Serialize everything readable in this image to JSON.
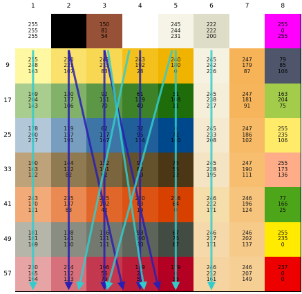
{
  "columns": [
    "1",
    "2",
    "3",
    "4",
    "5",
    "6",
    "7",
    "8"
  ],
  "rows": [
    "",
    "9",
    "17",
    "25",
    "33",
    "41",
    "49",
    "57"
  ],
  "cells": [
    [
      {
        "rgb": [
          "255",
          "255",
          "255"
        ],
        "color": "#ffffff"
      },
      {
        "rgb": [
          "0",
          "0",
          "0"
        ],
        "color": "#000000"
      },
      {
        "rgb": [
          "150",
          "81",
          "54"
        ],
        "color": "#965136"
      },
      {
        "rgb": [
          "",
          "",
          ""
        ],
        "color": "#ffffff"
      },
      {
        "rgb": [
          "245",
          "244",
          "231"
        ],
        "color": "#f5f4e7"
      },
      {
        "rgb": [
          "222",
          "222",
          "200"
        ],
        "color": "#dedec8"
      },
      {
        "rgb": [
          "",
          "",
          ""
        ],
        "color": "#ffffff"
      },
      {
        "rgb": [
          "255",
          "0",
          "255"
        ],
        "color": "#ff00ff"
      }
    ],
    [
      {
        "rgb": [
          "255",
          "248",
          "163"
        ],
        "color": "#fff8a3"
      },
      {
        "rgb": [
          "250",
          "225",
          "107"
        ],
        "color": "#fae16b"
      },
      {
        "rgb": [
          "248",
          "215",
          "83"
        ],
        "color": "#f8d753"
      },
      {
        "rgb": [
          "243",
          "192",
          "28"
        ],
        "color": "#f3c01c"
      },
      {
        "rgb": [
          "240",
          "180",
          "0"
        ],
        "color": "#f0b400"
      },
      {
        "rgb": [
          "245",
          "242",
          "226"
        ],
        "color": "#f5f2e2"
      },
      {
        "rgb": [
          "247",
          "179",
          "87"
        ],
        "color": "#f7b357"
      },
      {
        "rgb": [
          "79",
          "85",
          "106"
        ],
        "color": "#4f556a"
      }
    ],
    [
      {
        "rgb": [
          "169",
          "204",
          "143"
        ],
        "color": "#a9cc8f"
      },
      {
        "rgb": [
          "130",
          "177",
          "106"
        ],
        "color": "#82b16a"
      },
      {
        "rgb": [
          "92",
          "151",
          "70"
        ],
        "color": "#5c9746"
      },
      {
        "rgb": [
          "61",
          "129",
          "40"
        ],
        "color": "#3d8128"
      },
      {
        "rgb": [
          "31",
          "108",
          "11"
        ],
        "color": "#1f6c0b"
      },
      {
        "rgb": [
          "245",
          "238",
          "217"
        ],
        "color": "#f5eed9"
      },
      {
        "rgb": [
          "247",
          "181",
          "91"
        ],
        "color": "#f7b55b"
      },
      {
        "rgb": [
          "163",
          "204",
          "75"
        ],
        "color": "#a3cc4b"
      }
    ],
    [
      {
        "rgb": [
          "178",
          "200",
          "217"
        ],
        "color": "#b2c8d9"
      },
      {
        "rgb": [
          "119",
          "157",
          "191"
        ],
        "color": "#779dbf"
      },
      {
        "rgb": [
          "62",
          "117",
          "167"
        ],
        "color": "#3e75a7"
      },
      {
        "rgb": [
          "32",
          "95",
          "154"
        ],
        "color": "#205f9a"
      },
      {
        "rgb": [
          "0",
          "72",
          "140"
        ],
        "color": "#00488c"
      },
      {
        "rgb": [
          "245",
          "233",
          "208"
        ],
        "color": "#f5e9d0"
      },
      {
        "rgb": [
          "247",
          "186",
          "102"
        ],
        "color": "#f7ba66"
      },
      {
        "rgb": [
          "255",
          "235",
          "106"
        ],
        "color": "#ffeb6a"
      }
    ],
    [
      {
        "rgb": [
          "190",
          "163",
          "122"
        ],
        "color": "#bea37a"
      },
      {
        "rgb": [
          "144",
          "122",
          "82"
        ],
        "color": "#907a52"
      },
      {
        "rgb": [
          "122",
          "101",
          "62"
        ],
        "color": "#7a653e"
      },
      {
        "rgb": [
          "99",
          "82",
          "43"
        ],
        "color": "#63522b"
      },
      {
        "rgb": [
          "75",
          "55",
          "22"
        ],
        "color": "#4b3716"
      },
      {
        "rgb": [
          "245",
          "228",
          "195"
        ],
        "color": "#f5e4c3"
      },
      {
        "rgb": [
          "247",
          "190",
          "111"
        ],
        "color": "#f7be6f"
      },
      {
        "rgb": [
          "255",
          "173",
          "136"
        ],
        "color": "#ffad88"
      }
    ],
    [
      {
        "rgb": [
          "243",
          "170",
          "121"
        ],
        "color": "#f3aa79"
      },
      {
        "rgb": [
          "235",
          "137",
          "83"
        ],
        "color": "#eb8953"
      },
      {
        "rgb": [
          "225",
          "102",
          "42"
        ],
        "color": "#e1662a"
      },
      {
        "rgb": [
          "220",
          "83",
          "19"
        ],
        "color": "#dc5313"
      },
      {
        "rgb": [
          "216",
          "64",
          "0"
        ],
        "color": "#d84000"
      },
      {
        "rgb": [
          "246",
          "222",
          "171"
        ],
        "color": "#f6deab"
      },
      {
        "rgb": [
          "246",
          "196",
          "124"
        ],
        "color": "#f6c47c"
      },
      {
        "rgb": [
          "77",
          "166",
          "25"
        ],
        "color": "#4da619"
      }
    ],
    [
      {
        "rgb": [
          "181",
          "181",
          "169"
        ],
        "color": "#b5b5a9"
      },
      {
        "rgb": [
          "138",
          "141",
          "130"
        ],
        "color": "#8a8d82"
      },
      {
        "rgb": [
          "116",
          "121",
          "111"
        ],
        "color": "#74796f"
      },
      {
        "rgb": [
          "93",
          "100",
          "90"
        ],
        "color": "#5d645a"
      },
      {
        "rgb": [
          "67",
          "76",
          "67"
        ],
        "color": "#434c43"
      },
      {
        "rgb": [
          "246",
          "217",
          "171"
        ],
        "color": "#f6d9ab"
      },
      {
        "rgb": [
          "246",
          "202",
          "137"
        ],
        "color": "#f6ca89"
      },
      {
        "rgb": [
          "255",
          "235",
          "0"
        ],
        "color": "#ffeb00"
      }
    ],
    [
      {
        "rgb": [
          "230",
          "165",
          "164"
        ],
        "color": "#e6a5a4"
      },
      {
        "rgb": [
          "214",
          "112",
          "123"
        ],
        "color": "#d6707b"
      },
      {
        "rgb": [
          "196",
          "56",
          "79"
        ],
        "color": "#c4384f"
      },
      {
        "rgb": [
          "189",
          "28",
          "57"
        ],
        "color": "#bd1c39"
      },
      {
        "rgb": [
          "179",
          "0",
          "35"
        ],
        "color": "#b30023"
      },
      {
        "rgb": [
          "246",
          "212",
          "161"
        ],
        "color": "#f6d4a1"
      },
      {
        "rgb": [
          "246",
          "207",
          "149"
        ],
        "color": "#f6cf95"
      },
      {
        "rgb": [
          "237",
          "0",
          "0"
        ],
        "color": "#ed0000"
      }
    ]
  ],
  "arrows": [
    {
      "from": [
        1,
        0.5
      ],
      "to": [
        7,
        0.5
      ],
      "color": "#33cccc"
    },
    {
      "from": [
        1,
        1.5
      ],
      "to": [
        7,
        1.5
      ],
      "color": "#2a1fb0"
    },
    {
      "from": [
        1,
        2.5
      ],
      "to": [
        7,
        2.5
      ],
      "color": "#2a1fb0"
    },
    {
      "from": [
        1,
        3.5
      ],
      "to": [
        7,
        3.5
      ],
      "color": "#2a1fb0"
    },
    {
      "from": [
        1,
        4.5
      ],
      "to": [
        7,
        4.5
      ],
      "color": "#33cccc"
    },
    {
      "from": [
        1,
        5.5
      ],
      "to": [
        7,
        5.5
      ],
      "color": "#33cccc"
    },
    {
      "from": [
        1,
        1.5
      ],
      "to": [
        7,
        3.0
      ],
      "color": "#2a1fb0"
    },
    {
      "from": [
        1,
        2.5
      ],
      "to": [
        7,
        4.0
      ],
      "color": "#2a1fb0"
    },
    {
      "from": [
        1,
        3.2
      ],
      "to": [
        7,
        1.8
      ],
      "color": "#33cccc"
    },
    {
      "from": [
        1,
        4.4
      ],
      "to": [
        7,
        2.6
      ],
      "color": "#33cccc"
    },
    {
      "from": [
        1,
        2.6
      ],
      "to": [
        7,
        3.6
      ],
      "color": "#33cccc"
    }
  ]
}
